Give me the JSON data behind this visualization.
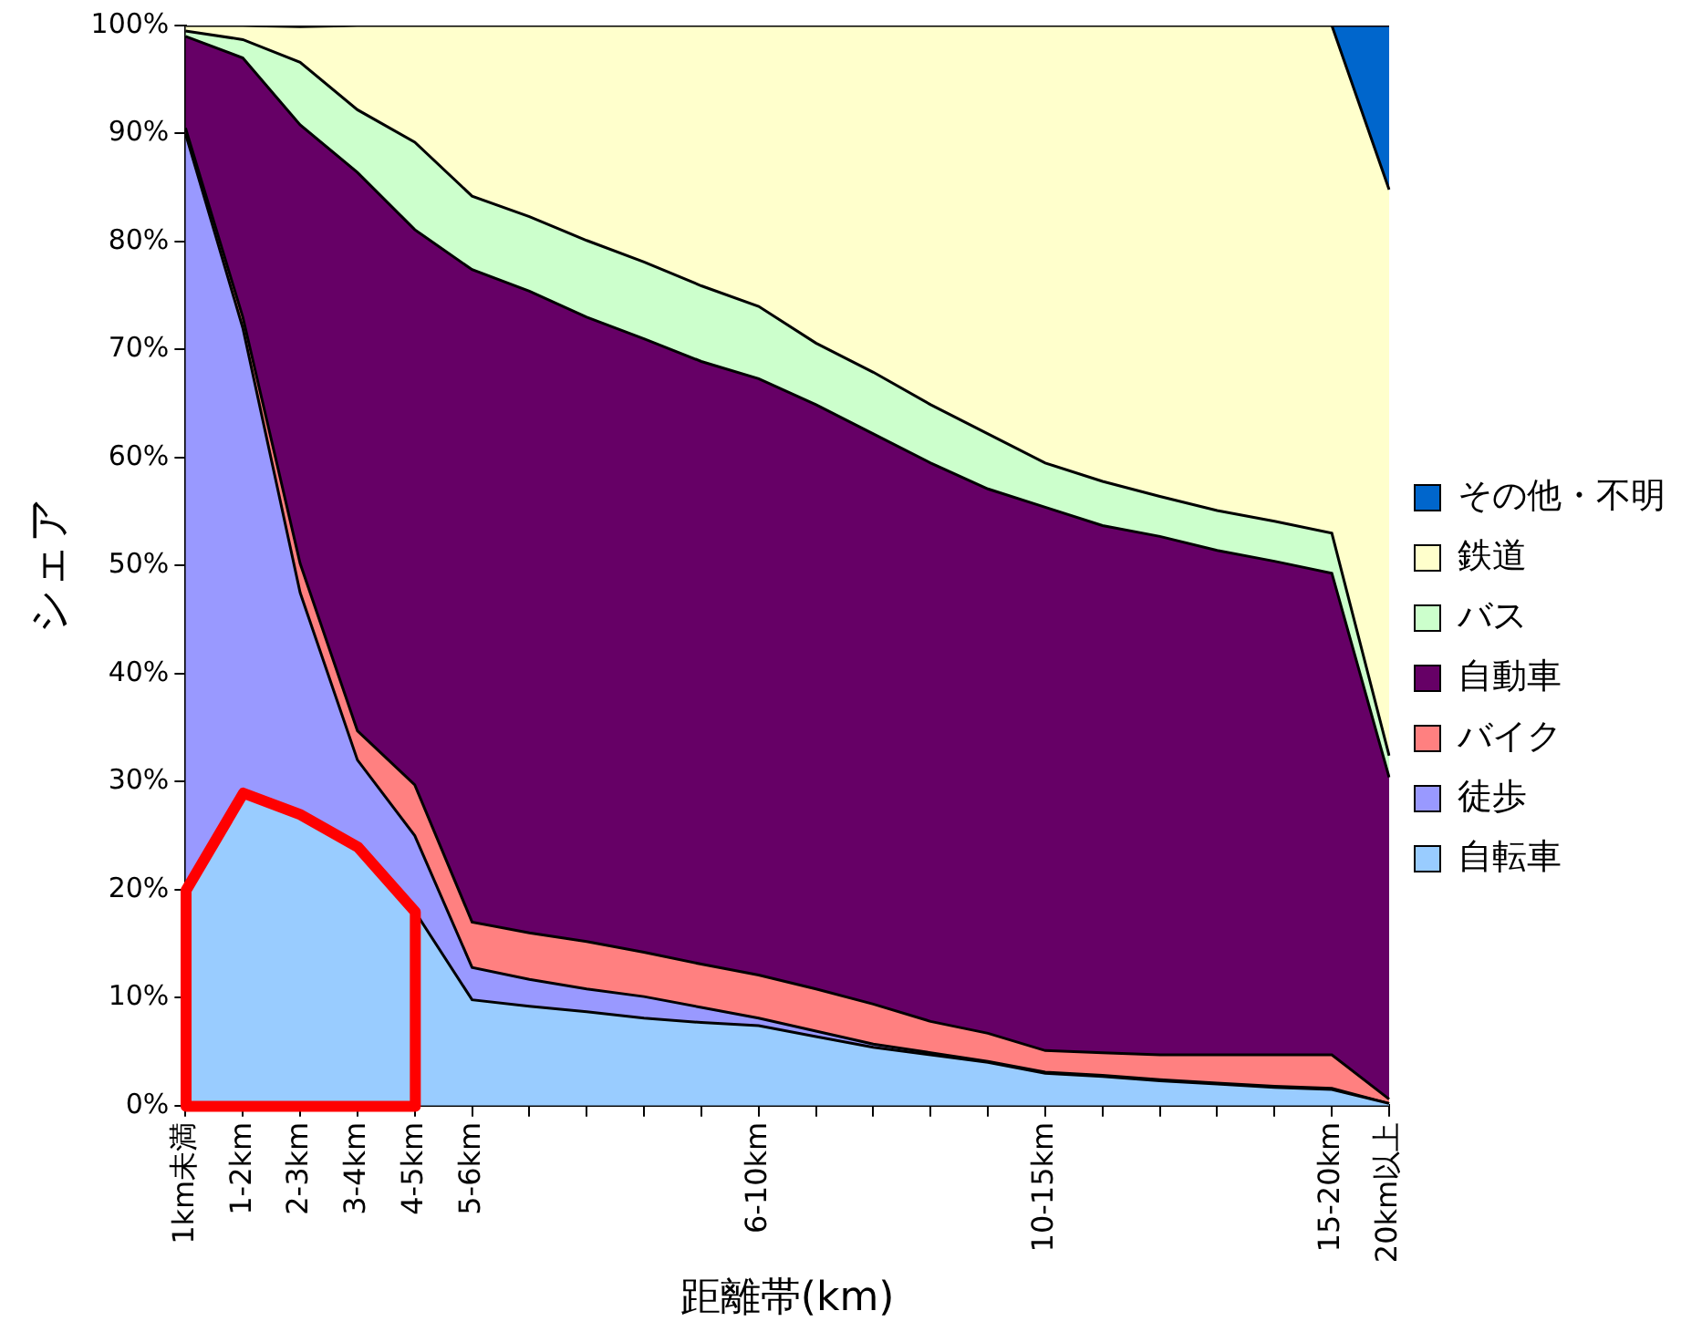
{
  "chart_data": {
    "type": "area",
    "stacked": true,
    "xlabel": "距離帯(km)",
    "ylabel": "シェア",
    "categories": [
      "1km未満",
      "1-2km",
      "2-3km",
      "3-4km",
      "4-5km",
      "5-6km",
      null,
      null,
      null,
      null,
      "6-10km",
      null,
      null,
      null,
      null,
      "10-15km",
      null,
      null,
      null,
      null,
      "15-20km",
      "20km以上"
    ],
    "ylim": [
      0,
      100
    ],
    "yticks": [
      {
        "value": 0,
        "label": "0%"
      },
      {
        "value": 10,
        "label": "10%"
      },
      {
        "value": 20,
        "label": "20%"
      },
      {
        "value": 30,
        "label": "30%"
      },
      {
        "value": 40,
        "label": "40%"
      },
      {
        "value": 50,
        "label": "50%"
      },
      {
        "value": 60,
        "label": "60%"
      },
      {
        "value": 70,
        "label": "70%"
      },
      {
        "value": 80,
        "label": "80%"
      },
      {
        "value": 90,
        "label": "90%"
      },
      {
        "value": 100,
        "label": "100%"
      }
    ],
    "grid": false,
    "legend": "right",
    "series": [
      {
        "name": "自転車",
        "color": "#99ccff",
        "values": [
          20,
          29,
          27,
          24,
          18,
          9.8,
          9.2,
          8.7,
          8.1,
          7.7,
          7.4,
          6.4,
          5.4,
          4.7,
          4.0,
          3.0,
          2.7,
          2.3,
          2.0,
          1.7,
          1.5,
          0.2
        ]
      },
      {
        "name": "徒歩",
        "color": "#9999ff",
        "values": [
          70,
          43,
          20.5,
          8,
          7,
          3,
          2.5,
          2.1,
          2.0,
          1.4,
          0.7,
          0.5,
          0.3,
          0.2,
          0.1,
          0.1,
          0.1,
          0.1,
          0.1,
          0.1,
          0.1,
          0
        ]
      },
      {
        "name": "バイク",
        "color": "#ff8080",
        "values": [
          0.5,
          1,
          2.7,
          2.7,
          4.7,
          4.2,
          4.3,
          4.4,
          4.1,
          4.0,
          4.0,
          3.9,
          3.7,
          2.9,
          2.6,
          2.0,
          2.1,
          2.3,
          2.6,
          2.9,
          3.1,
          0.4
        ]
      },
      {
        "name": "自動車",
        "color": "#660066",
        "values": [
          8.5,
          24,
          40.6,
          51.7,
          51.4,
          60.4,
          59.4,
          57.8,
          56.8,
          55.8,
          55.2,
          54.1,
          52.8,
          51.7,
          50.4,
          50.3,
          48.8,
          48.0,
          46.7,
          45.7,
          44.6,
          29.8
        ]
      },
      {
        "name": "バス",
        "color": "#ccffcc",
        "values": [
          0.5,
          1.7,
          5.8,
          5.8,
          8.1,
          6.8,
          6.9,
          7.1,
          7.1,
          7.0,
          6.7,
          5.7,
          5.7,
          5.4,
          5.1,
          4.1,
          4.1,
          3.7,
          3.7,
          3.7,
          3.7,
          2.0
        ]
      },
      {
        "name": "鉄道",
        "color": "#ffffcc",
        "values": [
          0.5,
          1.3,
          3.3,
          7.8,
          10.8,
          15.8,
          17.7,
          19.9,
          21.9,
          24.1,
          26.0,
          29.4,
          32.1,
          35.1,
          37.8,
          40.5,
          42.2,
          43.6,
          44.9,
          45.9,
          47.0,
          52.4
        ]
      },
      {
        "name": "その他・不明",
        "color": "#0066cc",
        "values": [
          0,
          0,
          0,
          0,
          0,
          0,
          0,
          0,
          0,
          0,
          0,
          0,
          0,
          0,
          0,
          0,
          0,
          0,
          0,
          0,
          0,
          15.2
        ]
      }
    ]
  }
}
